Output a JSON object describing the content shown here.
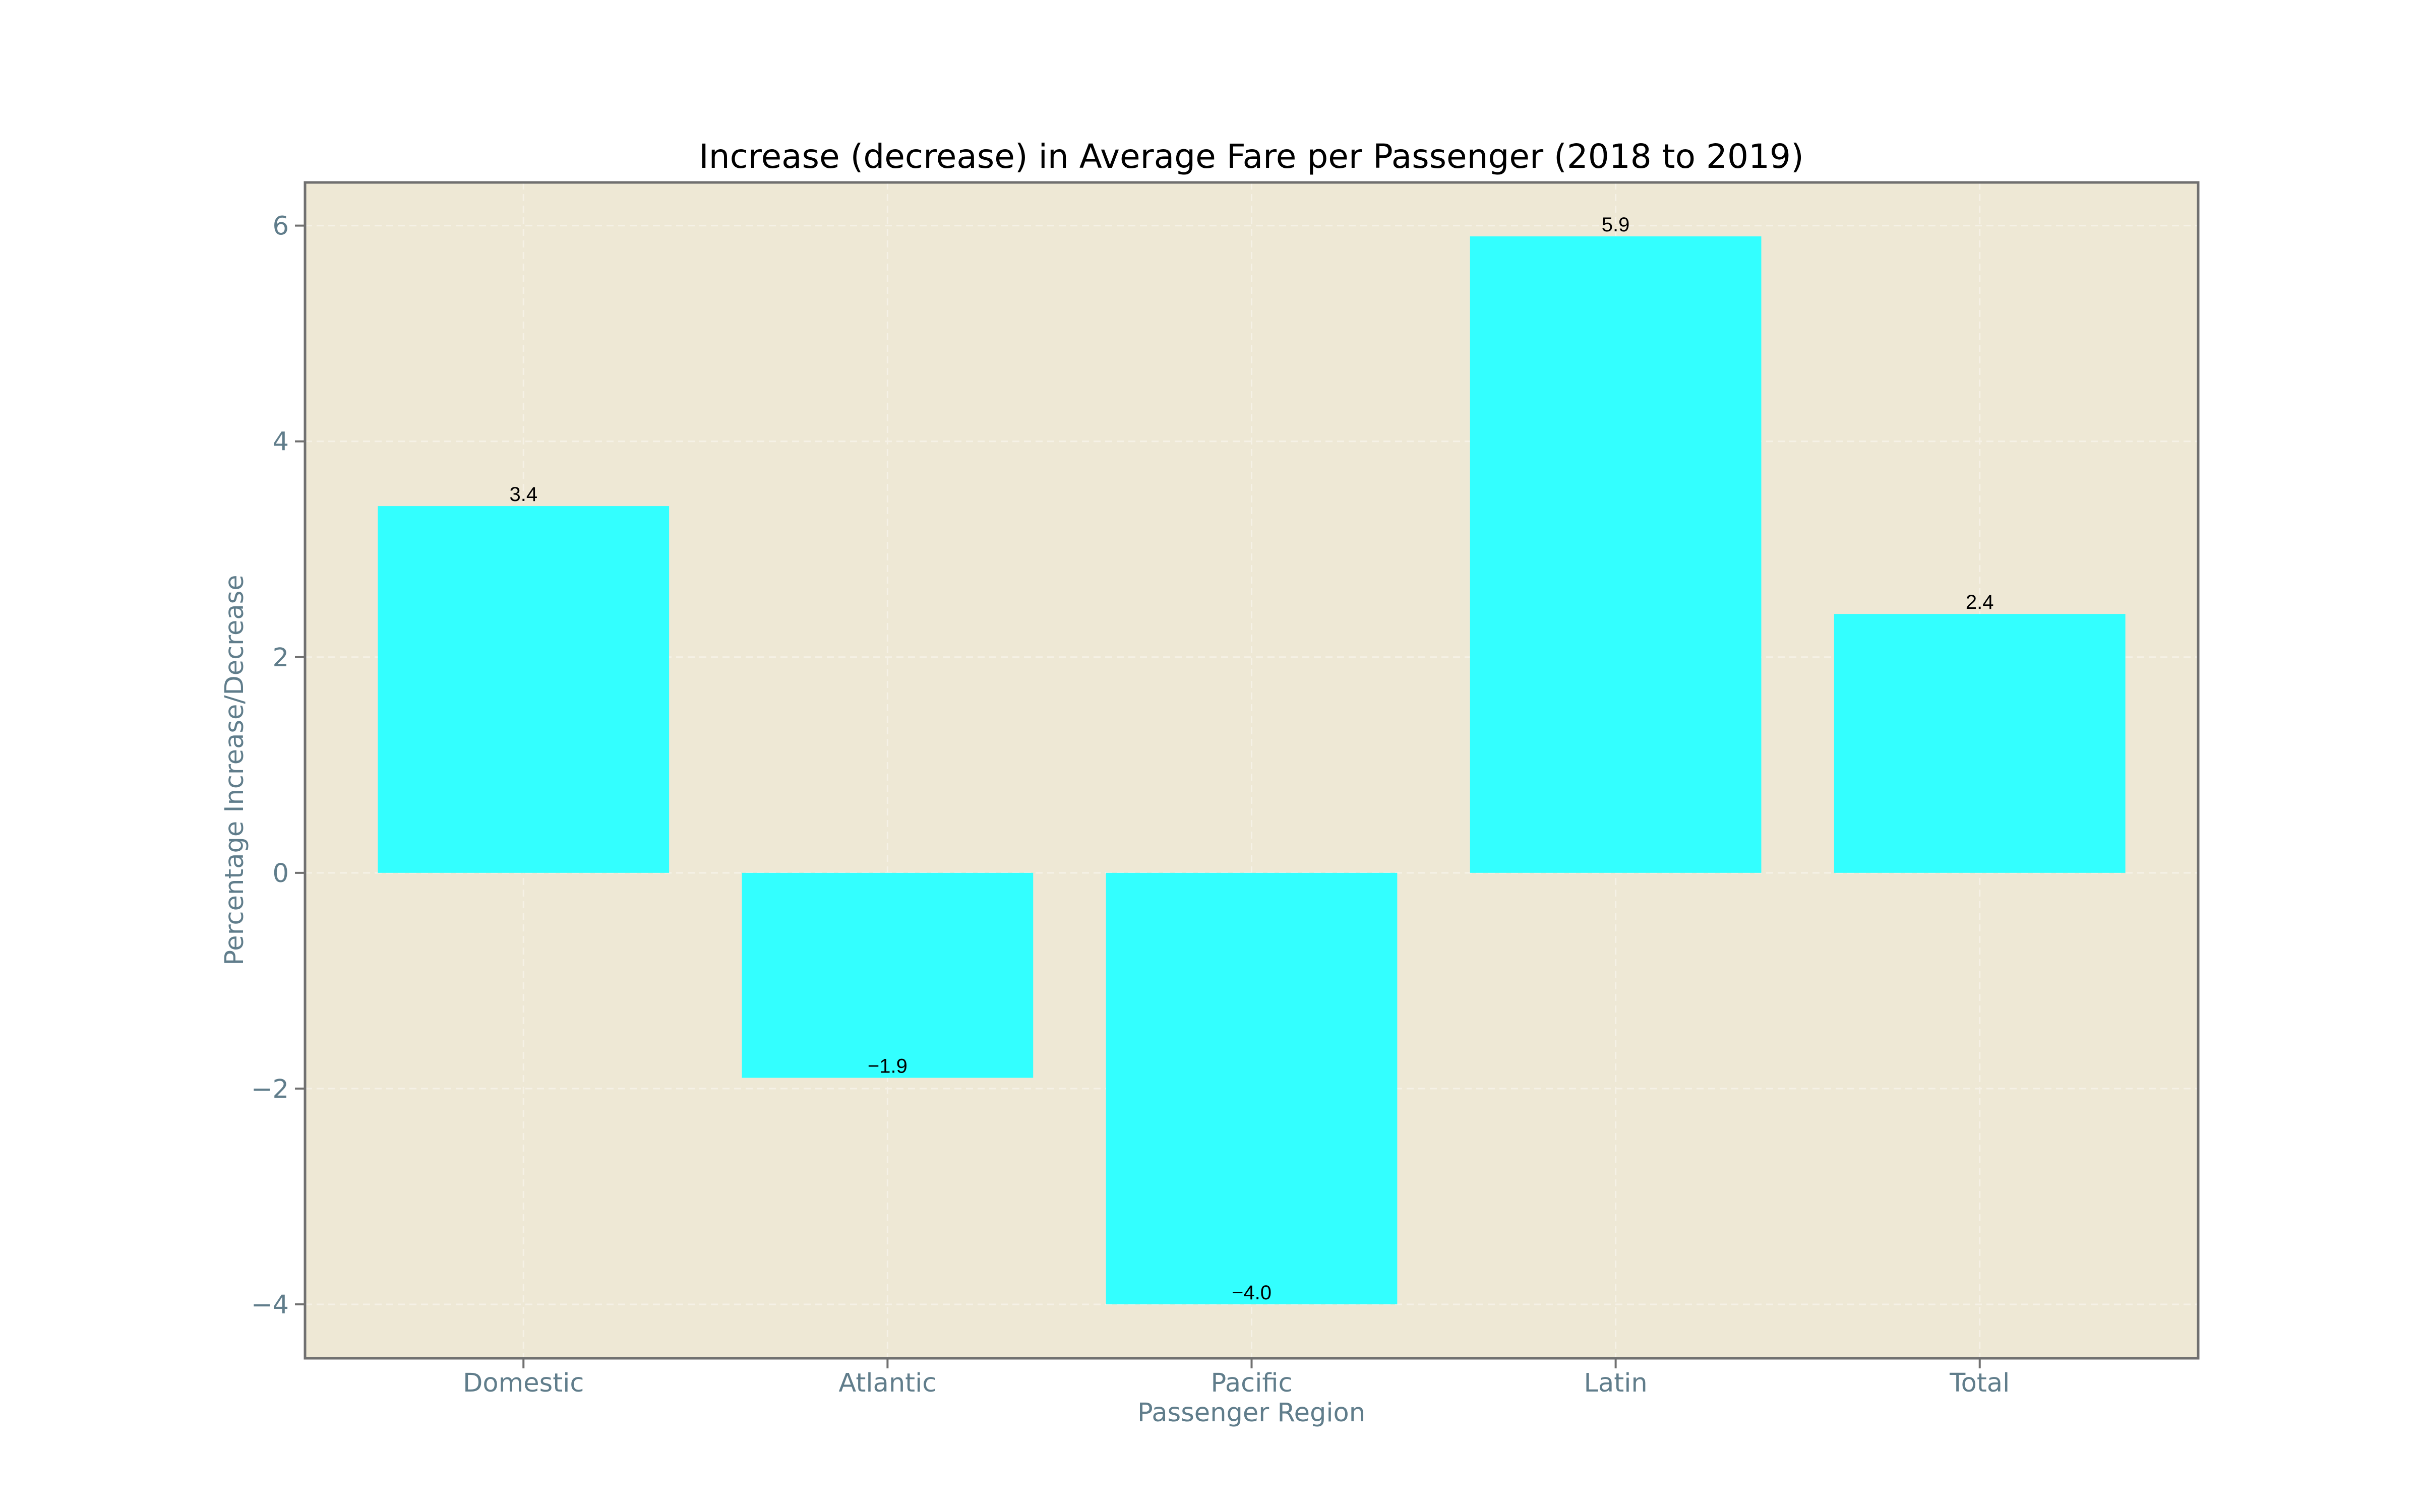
{
  "chart_data": {
    "type": "bar",
    "title": "Increase (decrease) in Average Fare per Passenger (2018 to 2019)",
    "xlabel": "Passenger Region",
    "ylabel": "Percentage Increase/Decrease",
    "categories": [
      "Domestic",
      "Atlantic",
      "Pacific",
      "Latin",
      "Total"
    ],
    "values": [
      3.4,
      -1.9,
      -4.0,
      5.9,
      2.4
    ],
    "data_labels": [
      "3.4",
      "−1.9",
      "−4.0",
      "5.9",
      "2.4"
    ],
    "ylim": [
      -4.5,
      6.4
    ],
    "yticks": [
      -4,
      -2,
      0,
      2,
      4,
      6
    ],
    "ytick_labels": [
      "−4",
      "−2",
      "0",
      "2",
      "4",
      "6"
    ],
    "grid": true,
    "legend": "none",
    "colors": {
      "bar": "#33ffff",
      "plot_background": "#eee8d5",
      "frame": "#707070",
      "axis_text": "#607d8b",
      "grid": "#f5f1e6"
    }
  }
}
